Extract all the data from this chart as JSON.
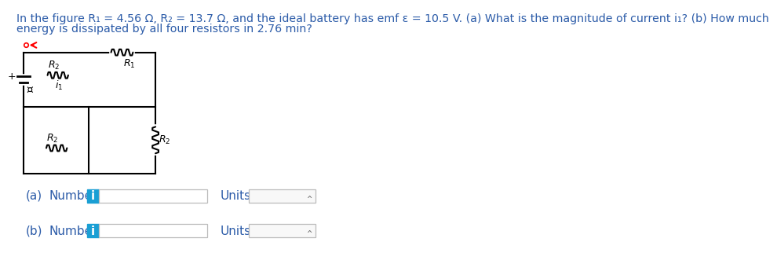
{
  "title_line1": "In the figure R₁ = 4.56 Ω, R₂ = 13.7 Ω, and the ideal battery has emf ε = 10.5 V. (a) What is the magnitude of current i₁? (b) How much",
  "title_line2": "energy is dissipated by all four resistors in 2.76 min?",
  "title_color": "#2B5BA8",
  "bg_color": "#ffffff",
  "label_color": "#2B5BA8",
  "info_btn_color": "#1a9fd4",
  "CL": 18,
  "CR": 235,
  "CT": 355,
  "CB": 155,
  "CM": 265,
  "CI": 125
}
